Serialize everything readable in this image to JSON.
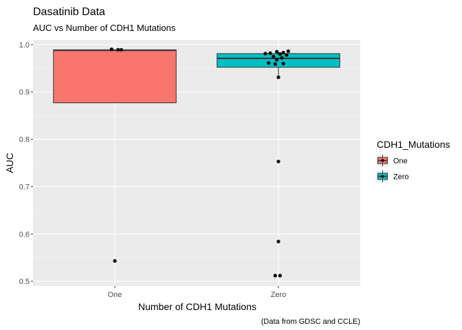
{
  "chart_data": {
    "type": "box",
    "title": "Dasatinib Data",
    "subtitle": "AUC vs Number of CDH1 Mutations",
    "xlabel": "Number of CDH1 Mutations",
    "ylabel": "AUC",
    "caption": "(Data from GDSC and CCLE)",
    "categories": [
      "One",
      "Zero"
    ],
    "ylim": [
      0.49,
      1.01
    ],
    "y_ticks": [
      0.5,
      0.6,
      0.7,
      0.8,
      0.9,
      1.0
    ],
    "y_tick_labels": [
      "0.5",
      "0.6",
      "0.7",
      "0.8",
      "0.9",
      "1.0"
    ],
    "grid": true,
    "legend": {
      "title": "CDH1_Mutations",
      "position": "right",
      "entries": [
        "One",
        "Zero"
      ]
    },
    "boxes": [
      {
        "category": "One",
        "fill": "#F8766D",
        "q1": 0.877,
        "median": 0.988,
        "q3": 0.989,
        "whisker_low": 0.877,
        "whisker_high": 0.989
      },
      {
        "category": "Zero",
        "fill": "#00BFC4",
        "q1": 0.952,
        "median": 0.971,
        "q3": 0.981,
        "whisker_low": 0.93,
        "whisker_high": 0.986
      }
    ],
    "points": [
      {
        "category": "One",
        "y": 0.99,
        "jitter": -0.02
      },
      {
        "category": "One",
        "y": 0.989,
        "jitter": 0.02
      },
      {
        "category": "One",
        "y": 0.989,
        "jitter": 0.04
      },
      {
        "category": "One",
        "y": 0.543,
        "jitter": 0.0
      },
      {
        "category": "Zero",
        "y": 0.986,
        "jitter": 0.06
      },
      {
        "category": "Zero",
        "y": 0.985,
        "jitter": -0.01
      },
      {
        "category": "Zero",
        "y": 0.983,
        "jitter": 0.03
      },
      {
        "category": "Zero",
        "y": 0.982,
        "jitter": -0.05
      },
      {
        "category": "Zero",
        "y": 0.981,
        "jitter": -0.08
      },
      {
        "category": "Zero",
        "y": 0.98,
        "jitter": 0.01
      },
      {
        "category": "Zero",
        "y": 0.978,
        "jitter": 0.05
      },
      {
        "category": "Zero",
        "y": 0.975,
        "jitter": -0.03
      },
      {
        "category": "Zero",
        "y": 0.972,
        "jitter": 0.02
      },
      {
        "category": "Zero",
        "y": 0.968,
        "jitter": -0.01
      },
      {
        "category": "Zero",
        "y": 0.961,
        "jitter": -0.06
      },
      {
        "category": "Zero",
        "y": 0.96,
        "jitter": 0.03
      },
      {
        "category": "Zero",
        "y": 0.959,
        "jitter": -0.02
      },
      {
        "category": "Zero",
        "y": 0.931,
        "jitter": 0.0
      },
      {
        "category": "Zero",
        "y": 0.753,
        "jitter": 0.0
      },
      {
        "category": "Zero",
        "y": 0.584,
        "jitter": 0.0
      },
      {
        "category": "Zero",
        "y": 0.512,
        "jitter": -0.02
      },
      {
        "category": "Zero",
        "y": 0.512,
        "jitter": 0.01
      }
    ]
  }
}
